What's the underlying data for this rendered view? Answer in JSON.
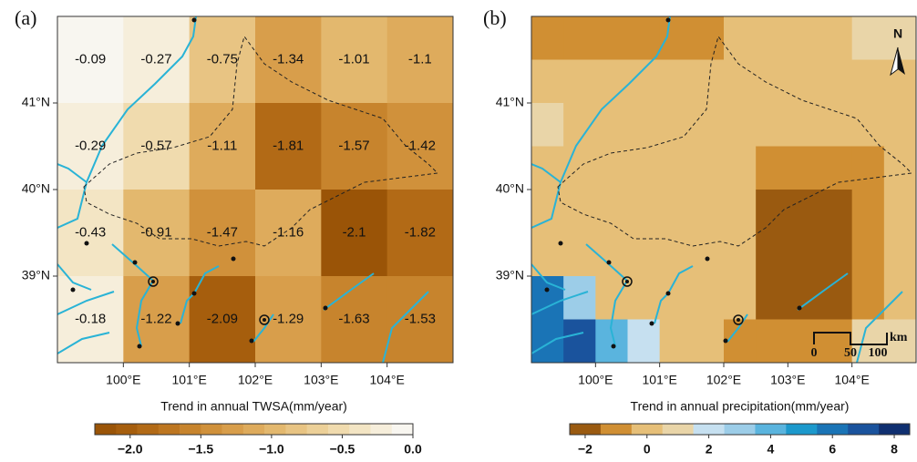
{
  "panels": [
    {
      "tag": "(a)",
      "xlim": [
        99,
        105
      ],
      "ylim": [
        38,
        42
      ],
      "lat_labels": [
        {
          "value": 41,
          "label": "41°N"
        },
        {
          "value": 40,
          "label": "40°N"
        },
        {
          "value": 39,
          "label": "39°N"
        }
      ],
      "lon_labels": [
        {
          "value": 100,
          "label": "100°E"
        },
        {
          "value": 101,
          "label": "101°E"
        },
        {
          "value": 102,
          "label": "102°E"
        },
        {
          "value": 103,
          "label": "103°E"
        },
        {
          "value": 104,
          "label": "104°E"
        }
      ],
      "grid": {
        "show_values": true,
        "lon_edges": [
          99,
          100,
          101,
          102,
          103,
          104,
          105
        ],
        "lat_edges": [
          42,
          41,
          40,
          39,
          38
        ],
        "values": [
          [
            -0.09,
            -0.27,
            -0.75,
            -1.34,
            -1.01,
            -1.1
          ],
          [
            -0.29,
            -0.57,
            -1.11,
            -1.81,
            -1.57,
            -1.42
          ],
          [
            -0.43,
            -0.91,
            -1.47,
            -1.16,
            -2.1,
            -1.82
          ],
          [
            -0.18,
            -1.22,
            -2.09,
            -1.29,
            -1.63,
            -1.53
          ]
        ]
      },
      "colorbar": {
        "title": "Trend in annual TWSA(mm/year)",
        "breaks": [
          -2.25,
          -2.1,
          -1.95,
          -1.8,
          -1.65,
          -1.5,
          -1.35,
          -1.2,
          -1.05,
          -0.9,
          -0.75,
          -0.6,
          -0.45,
          -0.3,
          -0.15,
          0
        ],
        "colors": [
          "#9a5407",
          "#a65e0d",
          "#b26a16",
          "#bd7620",
          "#c7842d",
          "#d0913b",
          "#d89e4b",
          "#deab5c",
          "#e3b86e",
          "#e8c483",
          "#ecd098",
          "#f0dbae",
          "#f3e5c4",
          "#f6eedb",
          "#f8f6f0"
        ],
        "ticks": [
          {
            "value": -2,
            "label": "−2.0"
          },
          {
            "value": -1.5,
            "label": "−1.5"
          },
          {
            "value": -1,
            "label": "−1.0"
          },
          {
            "value": -0.5,
            "label": "−0.5"
          },
          {
            "value": 0,
            "label": "0.0"
          }
        ]
      }
    },
    {
      "tag": "(b)",
      "xlim": [
        99,
        105
      ],
      "ylim": [
        38,
        42
      ],
      "lat_labels": [
        {
          "value": 41,
          "label": "41°N"
        },
        {
          "value": 40,
          "label": "40°N"
        },
        {
          "value": 39,
          "label": "39°N"
        }
      ],
      "lon_labels": [
        {
          "value": 100,
          "label": "100°E"
        },
        {
          "value": 101,
          "label": "101°E"
        },
        {
          "value": 102,
          "label": "102°E"
        },
        {
          "value": 103,
          "label": "103°E"
        },
        {
          "value": 104,
          "label": "104°E"
        }
      ],
      "grid": {
        "show_values": false,
        "lon_edges": [
          99,
          99.5,
          100,
          100.5,
          101,
          101.5,
          102,
          102.5,
          103,
          103.5,
          104,
          104.5,
          105
        ],
        "lat_edges": [
          42,
          41.5,
          41,
          40.5,
          40,
          39.5,
          39,
          38.5,
          38
        ],
        "values": [
          [
            -1,
            -1,
            -1,
            -1,
            -1,
            -1,
            -0.3,
            -0.3,
            -0.3,
            -0.3,
            1,
            1
          ],
          [
            -0.3,
            -0.3,
            -0.3,
            -0.3,
            -0.3,
            -0.3,
            -0.3,
            -0.3,
            -0.3,
            -0.3,
            -0.3,
            -0.3
          ],
          [
            1,
            -0.3,
            -0.3,
            -0.3,
            -0.3,
            -0.3,
            -0.3,
            -0.3,
            -0.3,
            -0.3,
            -0.3,
            -0.3
          ],
          [
            -0.3,
            -0.3,
            -0.3,
            -0.3,
            -0.3,
            -0.3,
            -0.3,
            -1,
            -1,
            -1,
            -1,
            -0.3
          ],
          [
            -0.3,
            -0.3,
            -0.3,
            -0.3,
            -0.3,
            -0.3,
            -0.3,
            -1.7,
            -1.7,
            -1.7,
            -1,
            -0.3
          ],
          [
            -0.3,
            -0.3,
            -0.3,
            -0.3,
            -0.3,
            -0.3,
            -0.3,
            -1.7,
            -2.2,
            -1.7,
            -1,
            -0.3
          ],
          [
            6,
            3,
            -0.3,
            -0.3,
            -0.3,
            -0.3,
            -0.3,
            -1.7,
            -1.7,
            -1.7,
            -1,
            -0.3
          ],
          [
            6,
            7,
            4,
            2,
            -0.3,
            -0.3,
            -1,
            -1,
            -1,
            -1,
            1,
            1
          ]
        ]
      },
      "colorbar": {
        "title": "Trend in annual precipitation(mm/year)",
        "breaks": [
          -2.5,
          -1.5,
          -0.5,
          0.5,
          1.5,
          2.5,
          3.5,
          4.5,
          5.5,
          6.5,
          7.5,
          8.5
        ],
        "colors": [
          "#9a5a10",
          "#d08f33",
          "#e6bf78",
          "#e9d5a8",
          "#c6e0f0",
          "#9ccde8",
          "#5ab4de",
          "#1c99cc",
          "#1a74b6",
          "#1a539d",
          "#0f2f70"
        ],
        "ticks": [
          {
            "value": -2,
            "label": "−2"
          },
          0,
          2,
          4,
          6,
          8
        ]
      },
      "north": "N",
      "scale_labels": [
        "0",
        "50",
        "100"
      ],
      "scale_unit": "km"
    }
  ]
}
